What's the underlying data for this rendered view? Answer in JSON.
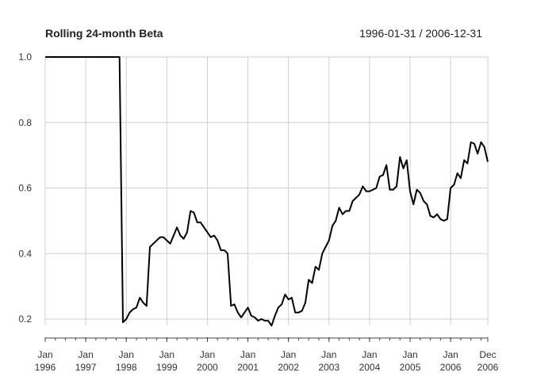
{
  "chart_data": {
    "type": "line",
    "title": "Rolling 24-month Beta",
    "date_range": "1996-01-31 / 2006-12-31",
    "xlabel": "",
    "ylabel": "",
    "ylim": [
      0.15,
      1.0
    ],
    "yticks": [
      0.2,
      0.4,
      0.6,
      0.8,
      1.0
    ],
    "ytick_labels": [
      "0.2",
      "0.4",
      "0.6",
      "0.8",
      "1.0"
    ],
    "xticks": [
      {
        "x": "1996-01",
        "line1": "Jan",
        "line2": "1996"
      },
      {
        "x": "1997-01",
        "line1": "Jan",
        "line2": "1997"
      },
      {
        "x": "1998-01",
        "line1": "Jan",
        "line2": "1998"
      },
      {
        "x": "1999-01",
        "line1": "Jan",
        "line2": "1999"
      },
      {
        "x": "2000-01",
        "line1": "Jan",
        "line2": "2000"
      },
      {
        "x": "2001-01",
        "line1": "Jan",
        "line2": "2001"
      },
      {
        "x": "2002-01",
        "line1": "Jan",
        "line2": "2002"
      },
      {
        "x": "2003-01",
        "line1": "Jan",
        "line2": "2003"
      },
      {
        "x": "2004-01",
        "line1": "Jan",
        "line2": "2004"
      },
      {
        "x": "2005-01",
        "line1": "Jan",
        "line2": "2005"
      },
      {
        "x": "2006-01",
        "line1": "Jan",
        "line2": "2006"
      },
      {
        "x": "2006-12",
        "line1": "Dec",
        "line2": "2006"
      }
    ],
    "grid": true,
    "line_color": "#000000",
    "series": [
      {
        "x": [
          "1996-01",
          "1996-06",
          "1997-06",
          "1997-11",
          "1997-12",
          "1998-01",
          "1998-02",
          "1998-03",
          "1998-04",
          "1998-05",
          "1998-06",
          "1998-07",
          "1998-08",
          "1998-09",
          "1998-10",
          "1998-11",
          "1998-12",
          "1999-01",
          "1999-02",
          "1999-03",
          "1999-04",
          "1999-05",
          "1999-06",
          "1999-07",
          "1999-08",
          "1999-09",
          "1999-10",
          "1999-11",
          "1999-12",
          "2000-01",
          "2000-02",
          "2000-03",
          "2000-04",
          "2000-05",
          "2000-06",
          "2000-07",
          "2000-08",
          "2000-09",
          "2000-10",
          "2000-11",
          "2000-12",
          "2001-01",
          "2001-02",
          "2001-03",
          "2001-04",
          "2001-05",
          "2001-06",
          "2001-07",
          "2001-08",
          "2001-09",
          "2001-10",
          "2001-11",
          "2001-12",
          "2002-01",
          "2002-02",
          "2002-03",
          "2002-04",
          "2002-05",
          "2002-06",
          "2002-07",
          "2002-08",
          "2002-09",
          "2002-10",
          "2002-11",
          "2002-12",
          "2003-01",
          "2003-02",
          "2003-03",
          "2003-04",
          "2003-05",
          "2003-06",
          "2003-07",
          "2003-08",
          "2003-09",
          "2003-10",
          "2003-11",
          "2003-12",
          "2004-01",
          "2004-02",
          "2004-03",
          "2004-04",
          "2004-05",
          "2004-06",
          "2004-07",
          "2004-08",
          "2004-09",
          "2004-10",
          "2004-11",
          "2004-12",
          "2005-01",
          "2005-02",
          "2005-03",
          "2005-04",
          "2005-05",
          "2005-06",
          "2005-07",
          "2005-08",
          "2005-09",
          "2005-10",
          "2005-11",
          "2005-12",
          "2006-01",
          "2006-02",
          "2006-03",
          "2006-04",
          "2006-05",
          "2006-06",
          "2006-07",
          "2006-08",
          "2006-09",
          "2006-10",
          "2006-11",
          "2006-12"
        ],
        "values": [
          1.0,
          1.0,
          1.0,
          1.0,
          0.19,
          0.2,
          0.22,
          0.23,
          0.235,
          0.265,
          0.25,
          0.24,
          0.42,
          0.43,
          0.44,
          0.45,
          0.45,
          0.44,
          0.43,
          0.455,
          0.48,
          0.455,
          0.445,
          0.465,
          0.53,
          0.525,
          0.495,
          0.495,
          0.48,
          0.465,
          0.45,
          0.455,
          0.44,
          0.41,
          0.41,
          0.4,
          0.24,
          0.245,
          0.22,
          0.205,
          0.22,
          0.235,
          0.21,
          0.205,
          0.195,
          0.2,
          0.195,
          0.195,
          0.18,
          0.21,
          0.235,
          0.245,
          0.275,
          0.26,
          0.265,
          0.22,
          0.22,
          0.225,
          0.25,
          0.32,
          0.31,
          0.36,
          0.35,
          0.4,
          0.42,
          0.44,
          0.485,
          0.5,
          0.54,
          0.52,
          0.53,
          0.53,
          0.56,
          0.57,
          0.58,
          0.605,
          0.59,
          0.59,
          0.595,
          0.6,
          0.635,
          0.64,
          0.67,
          0.595,
          0.595,
          0.605,
          0.695,
          0.66,
          0.685,
          0.59,
          0.55,
          0.595,
          0.585,
          0.56,
          0.55,
          0.515,
          0.51,
          0.52,
          0.505,
          0.5,
          0.505,
          0.6,
          0.61,
          0.645,
          0.63,
          0.685,
          0.675,
          0.74,
          0.735,
          0.705,
          0.74,
          0.725,
          0.68
        ]
      }
    ]
  }
}
